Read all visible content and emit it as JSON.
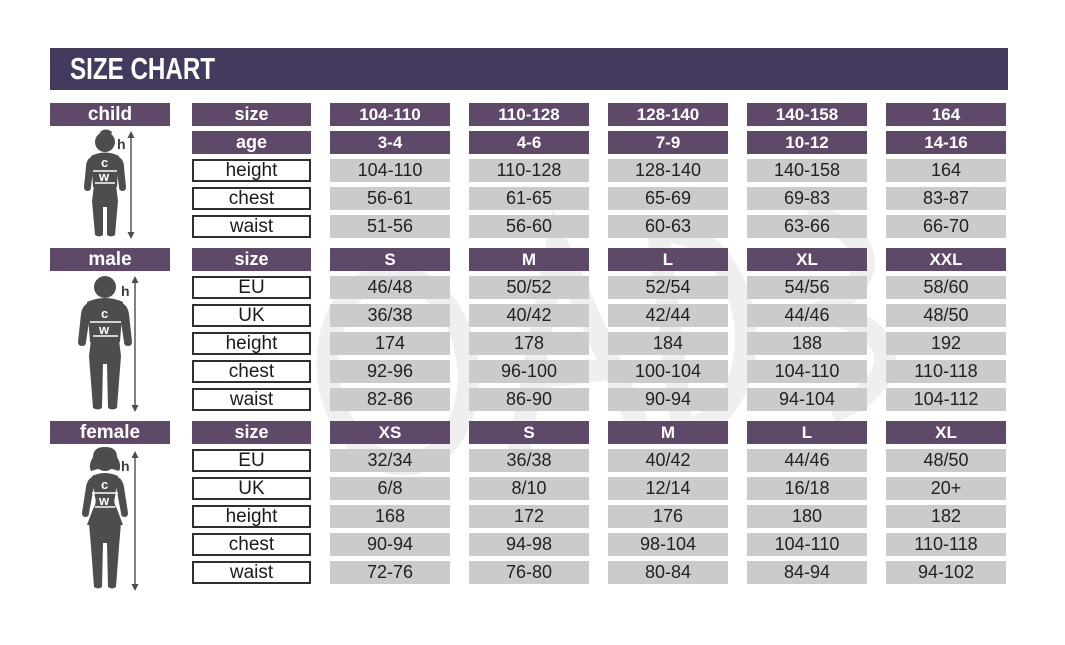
{
  "title": "SIZE CHART",
  "figure_labels": {
    "h": "h",
    "c": "c",
    "w": "w"
  },
  "colors": {
    "title_bar": "#443a5e",
    "header_purple": "#5f4968",
    "cell_gray": "#cbcbcb",
    "silhouette": "#4d4d4d",
    "watermark": "#ededed"
  },
  "chart_data": {
    "type": "table",
    "title": "SIZE CHART",
    "sections": [
      {
        "name": "child",
        "rows": [
          {
            "label": "size",
            "header": true,
            "values": [
              "104-110",
              "110-128",
              "128-140",
              "140-158",
              "164"
            ]
          },
          {
            "label": "age",
            "header": true,
            "values": [
              "3-4",
              "4-6",
              "7-9",
              "10-12",
              "14-16"
            ]
          },
          {
            "label": "height",
            "header": false,
            "values": [
              "104-110",
              "110-128",
              "128-140",
              "140-158",
              "164"
            ]
          },
          {
            "label": "chest",
            "header": false,
            "values": [
              "56-61",
              "61-65",
              "65-69",
              "69-83",
              "83-87"
            ]
          },
          {
            "label": "waist",
            "header": false,
            "values": [
              "51-56",
              "56-60",
              "60-63",
              "63-66",
              "66-70"
            ]
          }
        ]
      },
      {
        "name": "male",
        "rows": [
          {
            "label": "size",
            "header": true,
            "values": [
              "S",
              "M",
              "L",
              "XL",
              "XXL"
            ]
          },
          {
            "label": "EU",
            "header": false,
            "values": [
              "46/48",
              "50/52",
              "52/54",
              "54/56",
              "58/60"
            ]
          },
          {
            "label": "UK",
            "header": false,
            "values": [
              "36/38",
              "40/42",
              "42/44",
              "44/46",
              "48/50"
            ]
          },
          {
            "label": "height",
            "header": false,
            "values": [
              "174",
              "178",
              "184",
              "188",
              "192"
            ]
          },
          {
            "label": "chest",
            "header": false,
            "values": [
              "92-96",
              "96-100",
              "100-104",
              "104-110",
              "110-118"
            ]
          },
          {
            "label": "waist",
            "header": false,
            "values": [
              "82-86",
              "86-90",
              "90-94",
              "94-104",
              "104-112"
            ]
          }
        ]
      },
      {
        "name": "female",
        "rows": [
          {
            "label": "size",
            "header": true,
            "values": [
              "XS",
              "S",
              "M",
              "L",
              "XL"
            ]
          },
          {
            "label": "EU",
            "header": false,
            "values": [
              "32/34",
              "36/38",
              "40/42",
              "44/46",
              "48/50"
            ]
          },
          {
            "label": "UK",
            "header": false,
            "values": [
              "6/8",
              "8/10",
              "12/14",
              "16/18",
              "20+"
            ]
          },
          {
            "label": "height",
            "header": false,
            "values": [
              "168",
              "172",
              "176",
              "180",
              "182"
            ]
          },
          {
            "label": "chest",
            "header": false,
            "values": [
              "90-94",
              "94-98",
              "98-104",
              "104-110",
              "110-118"
            ]
          },
          {
            "label": "waist",
            "header": false,
            "values": [
              "72-76",
              "76-80",
              "80-84",
              "84-94",
              "94-102"
            ]
          }
        ]
      }
    ]
  }
}
